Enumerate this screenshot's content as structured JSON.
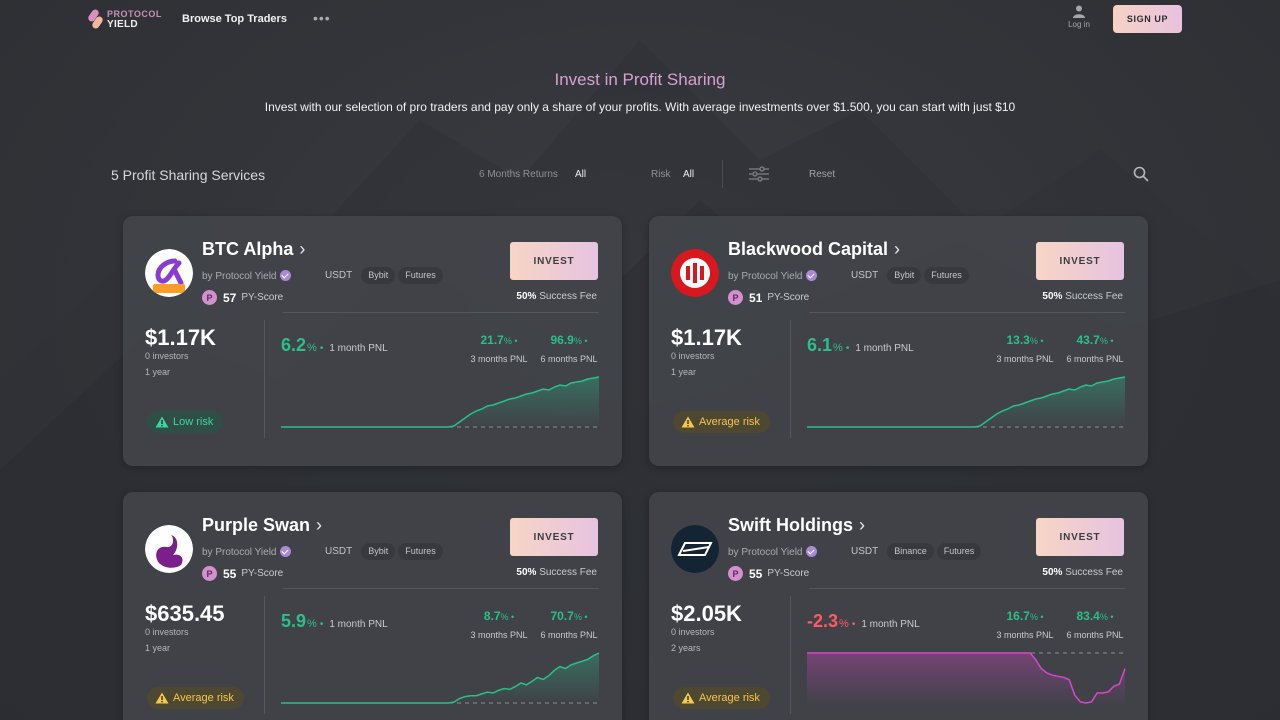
{
  "header": {
    "logo_line1": "PROTOCOL",
    "logo_line2": "YIELD",
    "browse_label": "Browse Top Traders",
    "more_label": "•••",
    "login_label": "Log in",
    "signup_label": "SIGN UP"
  },
  "hero": {
    "title": "Invest in Profit Sharing",
    "subtitle": "Invest with our selection of pro traders and pay only a share of your profits. With average investments over $1.500, you can start with just $10"
  },
  "filters": {
    "count_label": "5 Profit Sharing Services",
    "returns_label": "6 Months Returns",
    "returns_value": "All",
    "risk_label": "Risk",
    "risk_value": "All",
    "reset_label": "Reset"
  },
  "colors": {
    "positive": "#2bbf8a",
    "negative": "#ff5a67",
    "accent": "#d7a0d4"
  },
  "cards": [
    {
      "name": "BTC Alpha",
      "by": "by Protocol Yield",
      "currency": "USDT",
      "tags": [
        "Bybit",
        "Futures"
      ],
      "score": "57",
      "score_label": "PY-Score",
      "invest_label": "INVEST",
      "fee_value": "50%",
      "fee_label": "Success Fee",
      "aum": "$1.17K",
      "investors": "0 investors",
      "age": "1 year",
      "pnl_1m": "6.2",
      "pnl_1m_label": "1 month PNL",
      "pnl_3m": "21.7",
      "pnl_3m_label": "3 months PNL",
      "pnl_6m": "96.9",
      "pnl_6m_label": "6 months PNL",
      "pct": "%",
      "risk_label": "Low risk",
      "risk_level": "low",
      "avatar_icon": "alpha-logo-icon",
      "trend": "up",
      "series": [
        0,
        0,
        0,
        0,
        0,
        0,
        0,
        0,
        0,
        0,
        0,
        0,
        0,
        0,
        0,
        0,
        0,
        0,
        0,
        0,
        0,
        0,
        0,
        0,
        0,
        0,
        0,
        0,
        0,
        0,
        0,
        1,
        5,
        9,
        13,
        16,
        18,
        21,
        22,
        24,
        26,
        28,
        29,
        31,
        33,
        34,
        36,
        38,
        37,
        40,
        42,
        41,
        44,
        45,
        46,
        48,
        49,
        50
      ]
    },
    {
      "name": "Blackwood Capital",
      "by": "by Protocol Yield",
      "currency": "USDT",
      "tags": [
        "Bybit",
        "Futures"
      ],
      "score": "51",
      "score_label": "PY-Score",
      "invest_label": "INVEST",
      "fee_value": "50%",
      "fee_label": "Success Fee",
      "aum": "$1.17K",
      "investors": "0 investors",
      "age": "1 year",
      "pnl_1m": "6.1",
      "pnl_1m_label": "1 month PNL",
      "pnl_3m": "13.3",
      "pnl_3m_label": "3 months PNL",
      "pnl_6m": "43.7",
      "pnl_6m_label": "6 months PNL",
      "pct": "%",
      "risk_label": "Average risk",
      "risk_level": "avg",
      "avatar_icon": "blackwood-logo-icon",
      "trend": "up",
      "series": [
        0,
        0,
        0,
        0,
        0,
        0,
        0,
        0,
        0,
        0,
        0,
        0,
        0,
        0,
        0,
        0,
        0,
        0,
        0,
        0,
        0,
        0,
        0,
        0,
        0,
        0,
        0,
        0,
        0,
        0,
        0,
        1,
        5,
        9,
        13,
        16,
        18,
        21,
        22,
        24,
        26,
        28,
        29,
        31,
        33,
        34,
        36,
        38,
        37,
        40,
        42,
        41,
        44,
        45,
        46,
        48,
        49,
        50
      ]
    },
    {
      "name": "Purple Swan",
      "by": "by Protocol Yield",
      "currency": "USDT",
      "tags": [
        "Bybit",
        "Futures"
      ],
      "score": "55",
      "score_label": "PY-Score",
      "invest_label": "INVEST",
      "fee_value": "50%",
      "fee_label": "Success Fee",
      "aum": "$635.45",
      "investors": "0 investors",
      "age": "1 year",
      "pnl_1m": "5.9",
      "pnl_1m_label": "1 month PNL",
      "pnl_3m": "8.7",
      "pnl_3m_label": "3 months PNL",
      "pnl_6m": "70.7",
      "pnl_6m_label": "6 months PNL",
      "pct": "%",
      "risk_label": "Average risk",
      "risk_level": "avg",
      "avatar_icon": "swan-logo-icon",
      "trend": "up",
      "series": [
        0,
        0,
        0,
        0,
        0,
        0,
        0,
        0,
        0,
        0,
        0,
        0,
        0,
        0,
        0,
        0,
        0,
        0,
        0,
        0,
        0,
        0,
        0,
        0,
        0,
        0,
        0,
        0,
        0,
        0,
        0,
        1,
        5,
        7,
        8,
        8,
        10,
        12,
        11,
        14,
        16,
        15,
        18,
        22,
        20,
        24,
        28,
        26,
        30,
        36,
        40,
        38,
        42,
        44,
        46,
        48,
        52,
        55
      ]
    },
    {
      "name": "Swift Holdings",
      "by": "by Protocol Yield",
      "currency": "USDT",
      "tags": [
        "Binance",
        "Futures"
      ],
      "score": "55",
      "score_label": "PY-Score",
      "invest_label": "INVEST",
      "fee_value": "50%",
      "fee_label": "Success Fee",
      "aum": "$2.05K",
      "investors": "0 investors",
      "age": "2 years",
      "pnl_1m": "-2.3",
      "pnl_1m_label": "1 month PNL",
      "pnl_3m": "16.7",
      "pnl_3m_label": "3 months PNL",
      "pnl_6m": "83.4",
      "pnl_6m_label": "6 months PNL",
      "pct": "%",
      "risk_label": "Average risk",
      "risk_level": "avg",
      "avatar_icon": "swift-logo-icon",
      "trend": "down",
      "series": [
        0,
        0,
        0,
        0,
        0,
        0,
        0,
        0,
        0,
        0,
        0,
        0,
        0,
        0,
        0,
        0,
        0,
        0,
        0,
        0,
        0,
        0,
        0,
        0,
        0,
        0,
        0,
        0,
        0,
        0,
        0,
        0,
        0,
        0,
        0,
        0,
        0,
        0,
        0,
        0,
        0,
        -6,
        -14,
        -18,
        -20,
        -21,
        -22,
        -24,
        -38,
        -44,
        -45,
        -44,
        -36,
        -36,
        -35,
        -30,
        -28,
        -14
      ]
    }
  ]
}
